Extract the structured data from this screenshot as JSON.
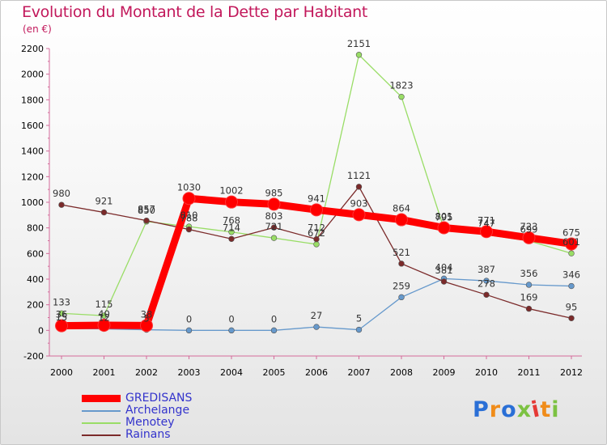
{
  "chart_data": {
    "type": "line",
    "title": "Evolution du Montant de la Dette par Habitant",
    "unit": "(en €)",
    "xlabel": "",
    "ylabel": "",
    "categories": [
      "2000",
      "2001",
      "2002",
      "2003",
      "2004",
      "2005",
      "2006",
      "2007",
      "2008",
      "2009",
      "2010",
      "2011",
      "2012"
    ],
    "ylim": [
      -200,
      2200
    ],
    "yticks": [
      -200,
      0,
      200,
      400,
      600,
      800,
      1000,
      1200,
      1400,
      1600,
      1800,
      2000,
      2200
    ],
    "grid": false,
    "legend_position": "bottom-left",
    "series": [
      {
        "name": "GREDISANS",
        "color": "#ff0000",
        "labelColor": "#3333cc",
        "style": "thick",
        "values": [
          36,
          40,
          38,
          1030,
          1002,
          985,
          941,
          903,
          864,
          801,
          771,
          723,
          675
        ]
      },
      {
        "name": "Archelange",
        "color": "#6699cc",
        "labelColor": "#3333cc",
        "style": "thin",
        "values": [
          15,
          12,
          5,
          0,
          0,
          0,
          27,
          5,
          259,
          404,
          387,
          356,
          346
        ]
      },
      {
        "name": "Menotey",
        "color": "#99dd66",
        "labelColor": "#3333cc",
        "style": "thin",
        "values": [
          133,
          115,
          850,
          810,
          768,
          721,
          672,
          2151,
          1823,
          795,
          747,
          699,
          601
        ]
      },
      {
        "name": "Rainans",
        "color": "#7b2a2a",
        "labelColor": "#3333cc",
        "style": "thin",
        "values": [
          980,
          921,
          857,
          788,
          714,
          803,
          712,
          1121,
          521,
          381,
          278,
          169,
          95
        ]
      }
    ]
  },
  "logo": {
    "text": "Proxiti",
    "colors": [
      "#2a6fd6",
      "#f08c1a",
      "#2a6fd6",
      "#7cc242",
      "#e53935",
      "#f08c1a",
      "#7cc242"
    ]
  }
}
